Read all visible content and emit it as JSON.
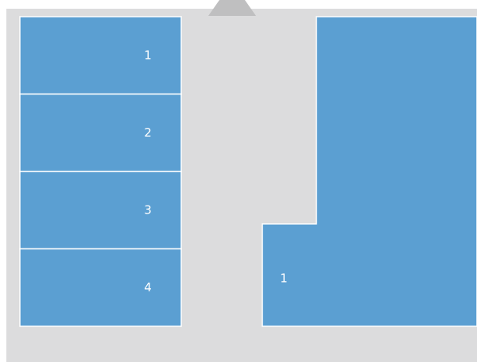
{
  "left_panels": [
    {
      "label": "1"
    },
    {
      "label": "2"
    },
    {
      "label": "3"
    },
    {
      "label": "4"
    }
  ],
  "right_panel": {
    "label": "1"
  }
}
